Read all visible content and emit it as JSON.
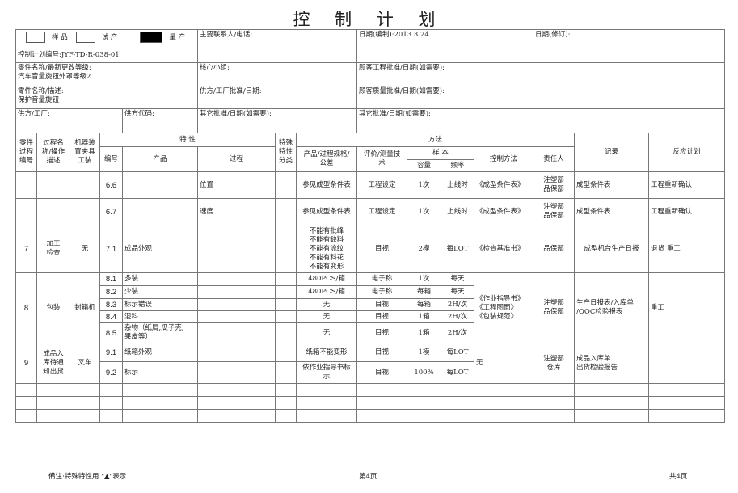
{
  "title": "控 制 计 划",
  "header": {
    "sample": "样 品",
    "trial": "试 产",
    "production": "量 产",
    "production_selected": true,
    "plan_no": "控制计划编号:JYF-TD-R-038-01",
    "contact": "主要联系人/电话:",
    "date_created": "日期(编制):2013.3.24",
    "date_revised": "日期(修订):",
    "part_no": "零件名称/最新更改等级:\n汽车音量旋钮外罩等级2",
    "core_team": "核心小组:",
    "cust_eng": "顾客工程批准/日期(如需要):",
    "part_desc": "零件名称/描述:\n保护音量旋钮",
    "supplier_approval": "供方/工厂批准/日期:",
    "cust_quality": "顾客质量批准/日期(如需要):",
    "supplier": "供方/工厂:",
    "supplier_code": "供方代码:",
    "other_approval1": "其它批准/日期(如需要):",
    "other_approval2": "其它批准/日期(如需要):"
  },
  "columns": {
    "part_no": "零件\n过程\n编号",
    "process_name": "过程名\n称/操作\n描述",
    "machine": "机器装\n置夹具\n工装",
    "characteristics": "特 性",
    "id": "编号",
    "product": "产品",
    "process": "过程",
    "special": "特殊\n特性\n分类",
    "methods": "方法",
    "spec": "产品/过程规格/\n公差",
    "eval": "评价/测量技\n术",
    "sample": "样 本",
    "size": "容量",
    "freq": "频率",
    "control": "控制方法",
    "owner": "责任人",
    "record": "记录",
    "reaction": "反应计划"
  },
  "rows": [
    {
      "no": "",
      "name": "",
      "machine": "",
      "id": "6.6",
      "product": "",
      "process": "位置",
      "special": "",
      "spec": "参见成型条件表",
      "eval": "工程设定",
      "size": "1次",
      "freq": "上线时",
      "control": "《成型条件表》",
      "owner": "注塑部\n品保部",
      "record": "成型条件表",
      "reaction": "工程重新确认"
    },
    {
      "no": "",
      "name": "",
      "machine": "",
      "id": "6.7",
      "product": "",
      "process": "速度",
      "special": "",
      "spec": "参见成型条件表",
      "eval": "工程设定",
      "size": "1次",
      "freq": "上线时",
      "control": "《成型条件表》",
      "owner": "注塑部\n品保部",
      "record": "成型条件表",
      "reaction": "工程重新确认"
    },
    {
      "no": "7",
      "name": "加工\n检查",
      "machine": "无",
      "id": "7.1",
      "product": "成品外观",
      "process": "",
      "special": "",
      "spec": "不能有批峰\n不能有缺料\n不能有流纹\n不能有料花\n不能有变形",
      "eval": "目视",
      "size": "2模",
      "freq": "每LOT",
      "control": "《检查基准书》",
      "owner": "品保部",
      "record": "成型机台生产日报",
      "reaction": "退货 重工"
    },
    {
      "no": "8",
      "name": "包装",
      "machine": "封箱机",
      "id": "8.1",
      "product": "多装",
      "process": "",
      "special": "",
      "spec": "480PCS/箱",
      "eval": "电子称",
      "size": "1次",
      "freq": "每天",
      "control": "《作业指导书》\n《工程图面》\n《包装规范》",
      "owner": "注塑部\n品保部",
      "record": "生产日报表/入库单\n/OQC检验报表",
      "reaction": "重工"
    },
    {
      "id": "8.2",
      "product": "少装",
      "process": "",
      "special": "",
      "spec": "480PCS/箱",
      "eval": "电子称",
      "size": "每箱",
      "freq": "每天"
    },
    {
      "id": "8.3",
      "product": "标示错误",
      "process": "",
      "special": "",
      "spec": "无",
      "eval": "目视",
      "size": "每箱",
      "freq": "2H/次"
    },
    {
      "id": "8.4",
      "product": "混料",
      "process": "",
      "special": "",
      "spec": "无",
      "eval": "目视",
      "size": "1箱",
      "freq": "2H/次"
    },
    {
      "id": "8.5",
      "product": "杂物（纸屑,瓜子壳,\n果皮等）",
      "process": "",
      "special": "",
      "spec": "无",
      "eval": "目视",
      "size": "1箱",
      "freq": "2H/次"
    },
    {
      "no": "9",
      "name": "成品入\n库待通\n知出货",
      "machine": "叉车",
      "id": "9.1",
      "product": "纸箱外观",
      "process": "",
      "special": "",
      "spec": "纸箱不能变形",
      "eval": "目视",
      "size": "1模",
      "freq": "每LOT",
      "control": "无",
      "owner": "注塑部\n仓库",
      "record": "成品入库单\n出货检验报告",
      "reaction": ""
    },
    {
      "id": "9.2",
      "product": "标示",
      "process": "",
      "special": "",
      "spec": "依作业指导书标\n示",
      "eval": "目视",
      "size": "100%",
      "freq": "每LOT"
    }
  ],
  "footer": {
    "note": "備注:特殊特性用 \"▲\"表示.",
    "page": "第4页",
    "total": "共4页"
  }
}
